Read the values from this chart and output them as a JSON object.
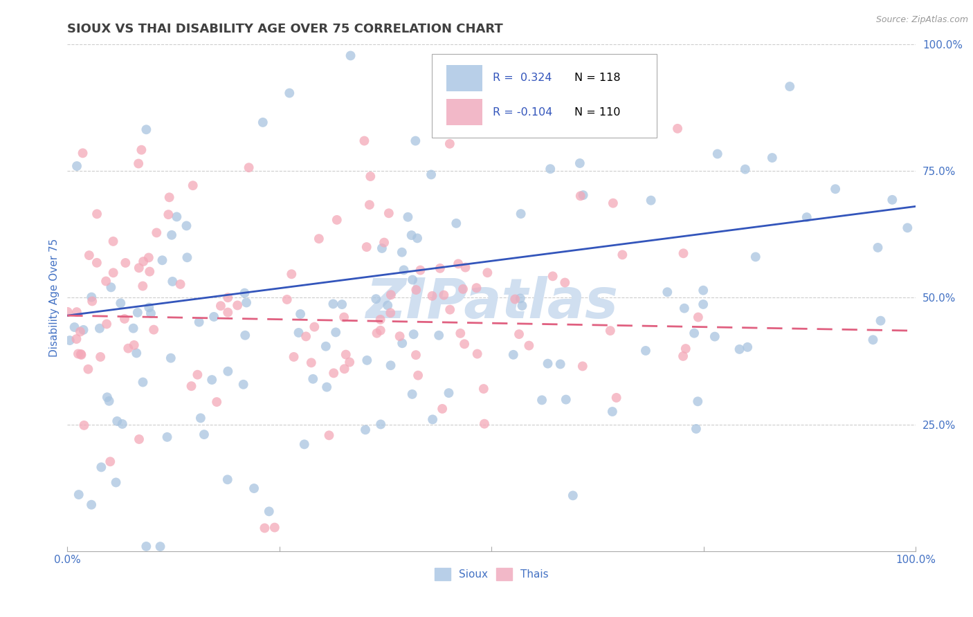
{
  "title": "SIOUX VS THAI DISABILITY AGE OVER 75 CORRELATION CHART",
  "source_text": "Source: ZipAtlas.com",
  "ylabel": "Disability Age Over 75",
  "xlim": [
    0.0,
    1.0
  ],
  "ylim": [
    0.0,
    1.0
  ],
  "xtick_positions": [
    0.0,
    0.25,
    0.5,
    0.75,
    1.0
  ],
  "xticklabels": [
    "0.0%",
    "",
    "",
    "",
    "100.0%"
  ],
  "ytick_positions": [
    0.25,
    0.5,
    0.75,
    1.0
  ],
  "ytick_labels": [
    "25.0%",
    "50.0%",
    "75.0%",
    "100.0%"
  ],
  "sioux_R": 0.324,
  "sioux_N": 118,
  "thai_R": -0.104,
  "thai_N": 110,
  "sioux_color": "#a8c4e0",
  "thai_color": "#f4a8b8",
  "sioux_line_color": "#3355bb",
  "thai_line_color": "#e06080",
  "sioux_line_start_y": 0.465,
  "sioux_line_end_y": 0.68,
  "thai_line_start_y": 0.465,
  "thai_line_end_y": 0.435,
  "legend_box_color": "#b8cfe8",
  "legend_box_color2": "#f2b8c8",
  "watermark_color": "#d0dff0",
  "background_color": "#ffffff",
  "title_color": "#404040",
  "axis_label_color": "#4472c4",
  "tick_label_color": "#4472c4",
  "grid_color": "#cccccc",
  "title_fontsize": 13,
  "axis_fontsize": 11,
  "tick_fontsize": 11,
  "scatter_size": 100,
  "scatter_alpha": 0.75,
  "sioux_seed": 12345,
  "thai_seed": 67890
}
